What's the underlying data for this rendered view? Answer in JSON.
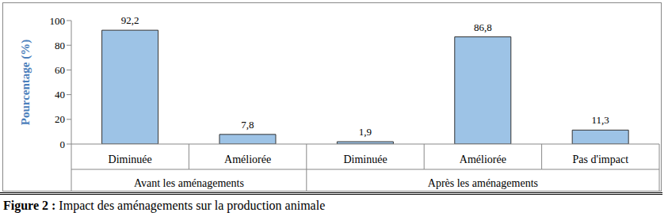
{
  "chart_data": {
    "type": "bar",
    "title": "Figure 2 : Impact des aménagements sur la production animale",
    "categories": [
      "Diminuée",
      "Améliorée",
      "Diminuée",
      "Améliorée",
      "Pas d'impact"
    ],
    "category_groups": [
      "Avant les aménagements",
      "Avant les aménagements",
      "Après les aménagements",
      "Après les aménagements",
      "Après les aménagements"
    ],
    "values": [
      92.2,
      7.8,
      1.9,
      86.8,
      11.3
    ],
    "value_labels": [
      "92,2",
      "7,8",
      "1,9",
      "86,8",
      "11,3"
    ],
    "color": "#9dc3e6",
    "y_label": "Pourcentage (%)",
    "ylim": [
      0,
      100
    ],
    "yticks": [
      0,
      20,
      40,
      60,
      80,
      100
    ],
    "grid": false,
    "data_labels": true
  }
}
